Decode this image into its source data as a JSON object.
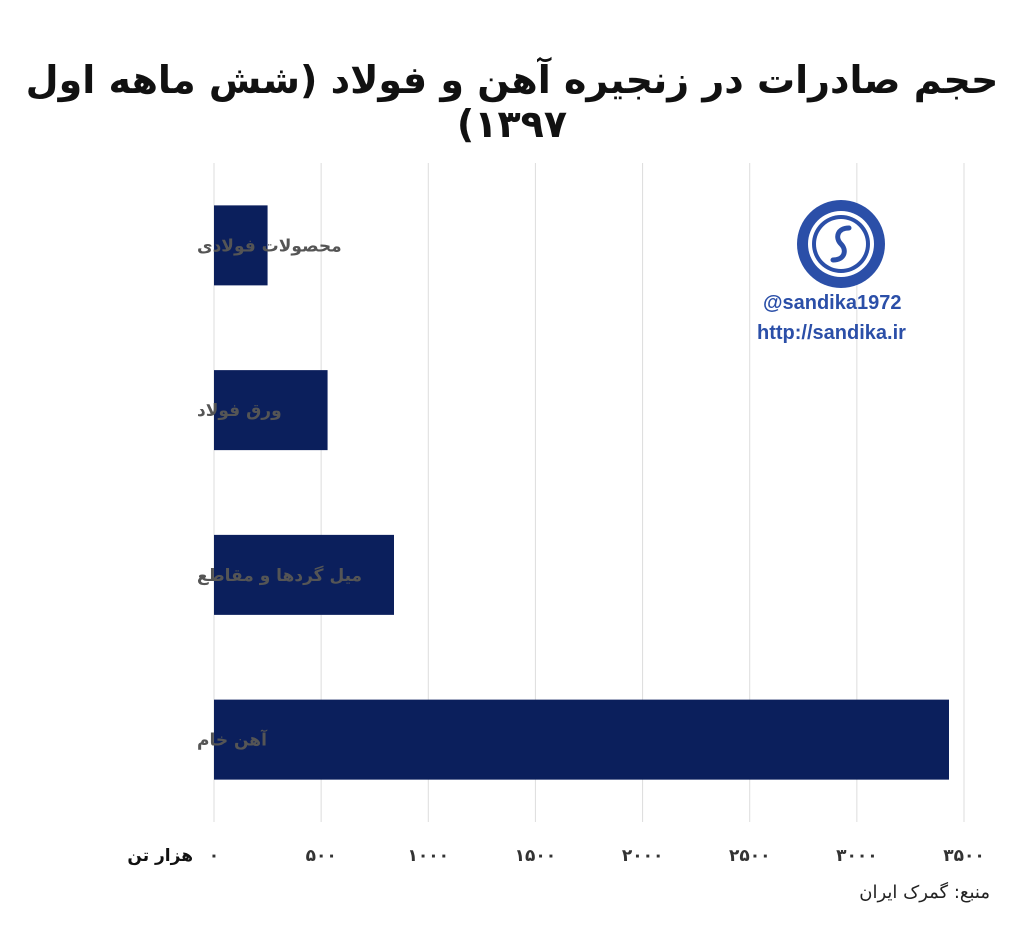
{
  "title": "حجم صادرات در زنجیره آهن و فولاد (شش ماهه اول ۱۳۹۷)",
  "source": "منبع: گمرک ایران",
  "watermark": {
    "handle": "@sandika1972",
    "url": "http://sandika.ir"
  },
  "colors": {
    "bar": "#0b1f5c",
    "grid": "#dddddd",
    "watermark": "#2b4fa8"
  },
  "chart_data": {
    "type": "bar",
    "orientation": "horizontal",
    "categories": [
      "محصولات فولادی",
      "ورق فولاد",
      "میل گردها و مقاطع",
      "آهن خام"
    ],
    "values": [
      250,
      530,
      840,
      3430
    ],
    "xlim": [
      0,
      3500
    ],
    "xticks": [
      0,
      500,
      1000,
      1500,
      2000,
      2500,
      3000,
      3500
    ],
    "xtick_labels": [
      "۰",
      "۵۰۰",
      "۱۰۰۰",
      "۱۵۰۰",
      "۲۰۰۰",
      "۲۵۰۰",
      "۳۰۰۰",
      "۳۵۰۰"
    ],
    "xlabel": "هزار تن",
    "grid": true
  }
}
